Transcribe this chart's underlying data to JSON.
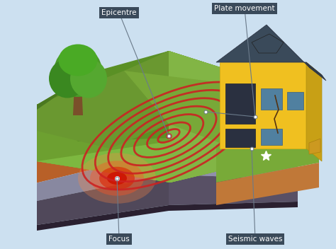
{
  "bg_color": "#cce0f0",
  "labels": {
    "epicentre": "Epicentre",
    "plate_movement": "Plate movement",
    "focus": "Focus",
    "seismic_waves": "Seismic waves"
  },
  "annotation_bg": "#3a4a5a",
  "annotation_text_color": "#ffffff",
  "seismic_ring_color": "#cc2222",
  "tree_trunk_color": "#7a4f2a",
  "house_wall_color": "#f0c020",
  "house_roof_color": "#3a4a5a",
  "grass_top_color": "#7aaa40",
  "grass_dark_color": "#5a8830",
  "soil1_color": "#c87840",
  "soil2_color": "#d88848",
  "soil3_color": "#b86830",
  "rock1_color": "#8888a0",
  "rock2_color": "#9090aa",
  "dark_base_color": "#3a3048"
}
